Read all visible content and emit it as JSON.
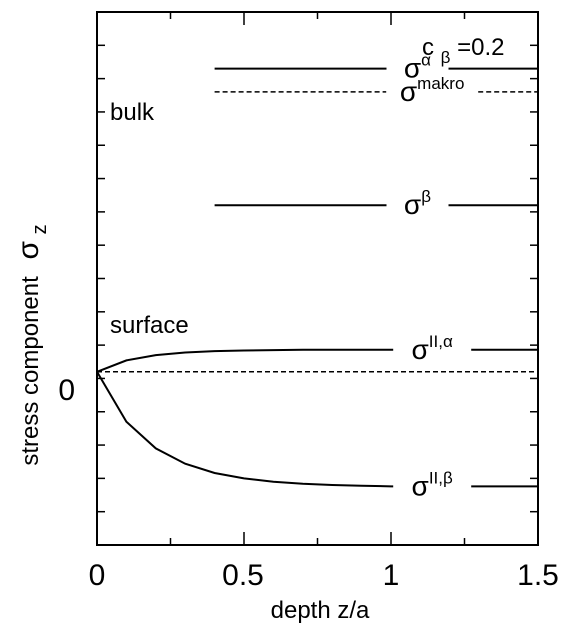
{
  "chart_data": {
    "type": "line",
    "xlabel": "depth z/a",
    "ylabel": "stress component",
    "ylabel_symbol": "σ",
    "ylabel_subscript": "z",
    "xlim": [
      0,
      1.5
    ],
    "ylim": [
      -2.6,
      5.4
    ],
    "x_ticks": [
      {
        "value": 0,
        "label": "0"
      },
      {
        "value": 0.5,
        "label": "0.5"
      },
      {
        "value": 1,
        "label": "1"
      },
      {
        "value": 1.5,
        "label": "1.5"
      }
    ],
    "y_ticks": [
      {
        "value": 0,
        "label": "0"
      }
    ],
    "grid": false,
    "legend": "none",
    "series": [
      {
        "name": "σ^α",
        "base": "σ",
        "sup": "α",
        "dash": "solid",
        "x": [
          0.4,
          1.5
        ],
        "y": [
          4.55,
          4.55
        ]
      },
      {
        "name": "σ^makro",
        "base": "σ",
        "sup": "makro",
        "dash": "dashed",
        "x": [
          0.4,
          1.5
        ],
        "y": [
          4.2,
          4.2
        ]
      },
      {
        "name": "σ^β",
        "base": "σ",
        "sup": "β",
        "dash": "solid",
        "x": [
          0.4,
          1.5
        ],
        "y": [
          2.5,
          2.5
        ]
      },
      {
        "name": "σ^II,α",
        "base": "σ",
        "sup": "II,α",
        "dash": "solid",
        "x": [
          0,
          0.1,
          0.2,
          0.3,
          0.4,
          0.5,
          0.6,
          0.7,
          0.8,
          0.9,
          1.0,
          1.2,
          1.5
        ],
        "y": [
          0,
          0.17,
          0.25,
          0.29,
          0.31,
          0.32,
          0.325,
          0.33,
          0.33,
          0.33,
          0.33,
          0.33,
          0.33
        ]
      },
      {
        "name": "zero line",
        "dash": "dashed",
        "x": [
          0,
          1.5
        ],
        "y": [
          0,
          0
        ]
      },
      {
        "name": "σ^II,β",
        "base": "σ",
        "sup": "II,β",
        "dash": "solid",
        "x": [
          0,
          0.1,
          0.2,
          0.3,
          0.4,
          0.5,
          0.6,
          0.7,
          0.8,
          0.9,
          1.0,
          1.2,
          1.5
        ],
        "y": [
          0,
          -0.75,
          -1.15,
          -1.38,
          -1.52,
          -1.6,
          -1.65,
          -1.68,
          -1.7,
          -1.71,
          -1.72,
          -1.72,
          -1.72
        ]
      }
    ],
    "annotations": [
      {
        "text": "bulk"
      },
      {
        "text": "surface"
      },
      {
        "base": "c",
        "sub": "β",
        "rest": "=0.2"
      }
    ]
  }
}
